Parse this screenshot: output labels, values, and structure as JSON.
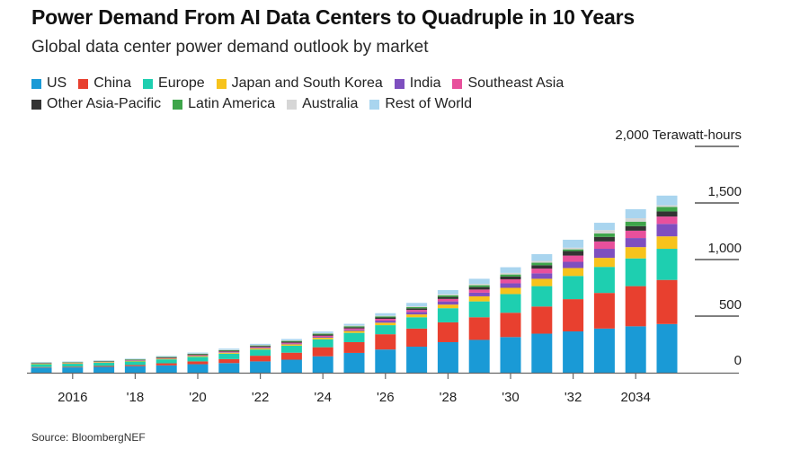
{
  "chart_data": {
    "type": "bar",
    "stacked": true,
    "title": "Power Demand From AI Data Centers to Quadruple in 10 Years",
    "subtitle": "Global data center power demand outlook by market",
    "xlabel": "",
    "ylabel": "Terawatt-hours",
    "unit_label": "2,000 Terawatt-hours",
    "ylim": [
      0,
      2000
    ],
    "yticks": [
      0,
      500,
      1000,
      1500,
      2000
    ],
    "ytick_labels": [
      "0",
      "500",
      "1,000",
      "1,500",
      "2,000 Terawatt-hours"
    ],
    "grid": false,
    "legend_position": "top-left",
    "categories": [
      2015,
      2016,
      2017,
      2018,
      2019,
      2020,
      2021,
      2022,
      2023,
      2024,
      2025,
      2026,
      2027,
      2028,
      2029,
      2030,
      2031,
      2032,
      2033,
      2034,
      2035
    ],
    "xticks": [
      2016,
      2018,
      2020,
      2022,
      2024,
      2026,
      2028,
      2030,
      2032,
      2034
    ],
    "xtick_labels": [
      "2016",
      "'18",
      "'20",
      "'22",
      "'24",
      "'26",
      "'28",
      "'30",
      "'32",
      "2034"
    ],
    "series": [
      {
        "name": "US",
        "color": "#1a9ad6",
        "values": [
          45,
          47,
          52,
          58,
          65,
          75,
          85,
          100,
          115,
          145,
          175,
          205,
          230,
          270,
          290,
          315,
          345,
          365,
          390,
          410,
          430
        ]
      },
      {
        "name": "China",
        "color": "#e8402f",
        "values": [
          5,
          6,
          8,
          10,
          18,
          25,
          35,
          50,
          62,
          80,
          95,
          135,
          160,
          175,
          200,
          215,
          240,
          285,
          315,
          355,
          390
        ]
      },
      {
        "name": "Europe",
        "color": "#1ecfb0",
        "values": [
          25,
          26,
          28,
          31,
          35,
          40,
          48,
          55,
          62,
          70,
          82,
          80,
          100,
          125,
          140,
          165,
          180,
          205,
          230,
          245,
          275
        ]
      },
      {
        "name": "Japan and South Korea",
        "color": "#f7c31c",
        "values": [
          5,
          5,
          5,
          6,
          6,
          8,
          9,
          10,
          12,
          14,
          17,
          22,
          25,
          32,
          45,
          55,
          65,
          70,
          80,
          100,
          110
        ]
      },
      {
        "name": "India",
        "color": "#7e4fbf",
        "values": [
          1,
          1,
          1,
          2,
          2,
          3,
          4,
          5,
          6,
          8,
          10,
          18,
          22,
          28,
          32,
          40,
          48,
          55,
          80,
          80,
          110
        ]
      },
      {
        "name": "Southeast Asia",
        "color": "#e8509c",
        "values": [
          2,
          2,
          3,
          3,
          4,
          5,
          6,
          7,
          8,
          10,
          12,
          16,
          18,
          22,
          28,
          35,
          42,
          55,
          65,
          65,
          65
        ]
      },
      {
        "name": "Other Asia-Pacific",
        "color": "#333333",
        "values": [
          3,
          3,
          4,
          4,
          5,
          6,
          7,
          8,
          9,
          10,
          11,
          12,
          14,
          18,
          22,
          25,
          30,
          40,
          40,
          40,
          45
        ]
      },
      {
        "name": "Latin America",
        "color": "#3ea54a",
        "values": [
          3,
          3,
          3,
          4,
          4,
          5,
          6,
          6,
          7,
          8,
          9,
          10,
          11,
          14,
          16,
          18,
          22,
          15,
          30,
          40,
          40
        ]
      },
      {
        "name": "Australia",
        "color": "#d6d6d6",
        "values": [
          2,
          2,
          2,
          2,
          3,
          3,
          4,
          4,
          5,
          5,
          6,
          6,
          7,
          10,
          12,
          14,
          16,
          15,
          30,
          30,
          15
        ]
      },
      {
        "name": "Rest of World",
        "color": "#a9d5ef",
        "values": [
          4,
          4,
          4,
          5,
          6,
          8,
          9,
          10,
          12,
          14,
          15,
          22,
          30,
          36,
          45,
          50,
          60,
          70,
          65,
          80,
          85
        ]
      }
    ],
    "source": "Source: BloombergNEF"
  },
  "legend": {
    "rows": [
      [
        0,
        1,
        2,
        3,
        4,
        5
      ],
      [
        6,
        7,
        8,
        9
      ]
    ]
  }
}
